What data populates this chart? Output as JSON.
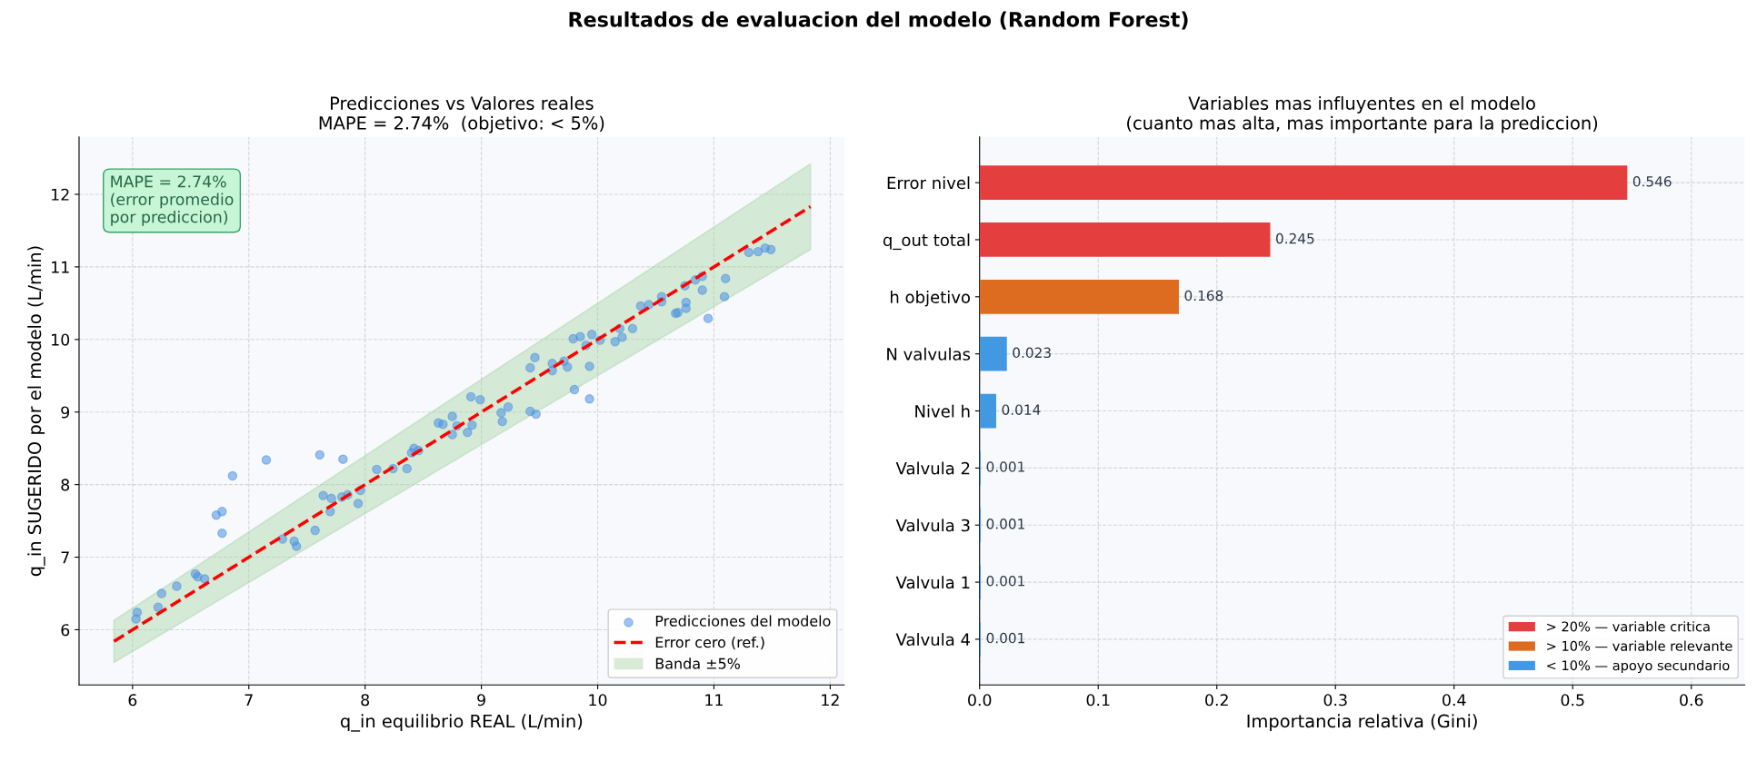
{
  "chart_data": [
    {
      "type": "scatter",
      "title": "Predicciones vs Valores reales\nMAPE = 2.74%  (objetivo: < 5%)",
      "xlabel": "q_in equilibrio REAL (L/min)",
      "ylabel": "q_in SUGERIDO por el modelo (L/min)",
      "xlim": [
        5.54,
        12.12
      ],
      "ylim": [
        5.24,
        12.79
      ],
      "xticks": [
        6,
        7,
        8,
        9,
        10,
        11,
        12
      ],
      "yticks": [
        6,
        7,
        8,
        9,
        10,
        11,
        12
      ],
      "grid": true,
      "legend": "bottom right",
      "annotations": [
        "Resultados de evaluacion del modelo (Random Forest)",
        "MAPE = 2.74%\n(error promedio\npor prediccion)",
        "Banda ±5%"
      ],
      "series": [
        {
          "type": "scatter",
          "name": "Predicciones del modelo",
          "color": "#4a90e2",
          "marker": "circle",
          "x": [
            6.04,
            6.03,
            6.22,
            6.25,
            6.38,
            6.54,
            6.56,
            6.62,
            6.72,
            6.77,
            6.77,
            6.86,
            7.15,
            7.29,
            7.39,
            7.41,
            7.57,
            7.61,
            7.64,
            7.71,
            7.7,
            7.8,
            7.81,
            7.85,
            7.94,
            7.96,
            8.1,
            8.24,
            8.36,
            8.4,
            8.42,
            8.46,
            8.63,
            8.67,
            8.75,
            8.75,
            8.79,
            8.88,
            8.92,
            8.91,
            8.99,
            9.17,
            9.18,
            9.23,
            9.42,
            9.46,
            9.42,
            9.47,
            9.61,
            9.61,
            9.71,
            9.74,
            9.8,
            9.79,
            9.85,
            9.9,
            9.93,
            9.93,
            9.95,
            10.02,
            10.15,
            10.19,
            10.21,
            10.3,
            10.37,
            10.44,
            10.55,
            10.55,
            10.67,
            10.69,
            10.76,
            10.76,
            10.75,
            10.84,
            10.9,
            10.9,
            10.95,
            11.09,
            11.1,
            11.3,
            11.38,
            11.44,
            11.49
          ],
          "values": [
            6.24,
            6.15,
            6.31,
            6.5,
            6.6,
            6.77,
            6.73,
            6.7,
            7.58,
            7.63,
            7.33,
            8.12,
            8.34,
            7.25,
            7.22,
            7.15,
            7.37,
            8.41,
            7.85,
            7.81,
            7.63,
            7.83,
            8.35,
            7.86,
            7.74,
            7.92,
            8.21,
            8.22,
            8.22,
            8.44,
            8.5,
            8.47,
            8.85,
            8.83,
            8.94,
            8.69,
            8.81,
            8.72,
            8.82,
            9.21,
            9.17,
            8.99,
            8.87,
            9.07,
            9.61,
            9.75,
            9.01,
            8.97,
            9.57,
            9.67,
            9.7,
            9.62,
            9.31,
            10.01,
            10.04,
            9.92,
            9.63,
            9.18,
            10.07,
            9.99,
            9.97,
            10.15,
            10.03,
            10.15,
            10.46,
            10.48,
            10.59,
            10.52,
            10.36,
            10.37,
            10.51,
            10.43,
            10.74,
            10.82,
            10.87,
            10.68,
            10.29,
            10.59,
            10.84,
            11.2,
            11.21,
            11.26,
            11.24
          ]
        },
        {
          "type": "line",
          "name": "Error cero (ref.)",
          "color": "#ff0000",
          "line_style": "dashed",
          "marker": "none",
          "x": [
            5.84,
            11.83
          ],
          "values": [
            5.84,
            11.83
          ],
          "lower": [
            5.55,
            11.24
          ],
          "upper": [
            6.13,
            12.42
          ]
        }
      ]
    },
    {
      "type": "bar",
      "orientation": "horizontal",
      "title": "Variables mas influyentes en el modelo\n(cuanto mas alta, mas importante para la prediccion)",
      "xlabel": "Importancia relativa (Gini)",
      "categories": [
        "Error nivel",
        "q_out total",
        "h objetivo",
        "N valvulas",
        "Nivel h",
        "Valvula 2",
        "Valvula 3",
        "Valvula 1",
        "Valvula 4"
      ],
      "xlim": [
        0,
        0.645
      ],
      "xticks": [
        {
          "value": 0,
          "label": "0.0"
        },
        0.1,
        0.2,
        0.3,
        0.4,
        0.5,
        0.6
      ],
      "grid": true,
      "legend": "bottom right",
      "data_labels": true,
      "series": [
        {
          "name": "> 20% — variable critica",
          "color": "#e53e3e",
          "values": [
            0.546,
            0.245,
            null,
            null,
            null,
            null,
            null,
            null,
            null
          ]
        },
        {
          "name": "> 10% — variable relevante",
          "color": "#dd6b20",
          "values": [
            null,
            null,
            0.168,
            null,
            null,
            null,
            null,
            null,
            null
          ]
        },
        {
          "name": "< 10% — apoyo secundario",
          "color": "#4299e1",
          "values": [
            null,
            null,
            null,
            0.023,
            0.014,
            0.001,
            0.001,
            0.001,
            0.001
          ]
        }
      ]
    }
  ]
}
